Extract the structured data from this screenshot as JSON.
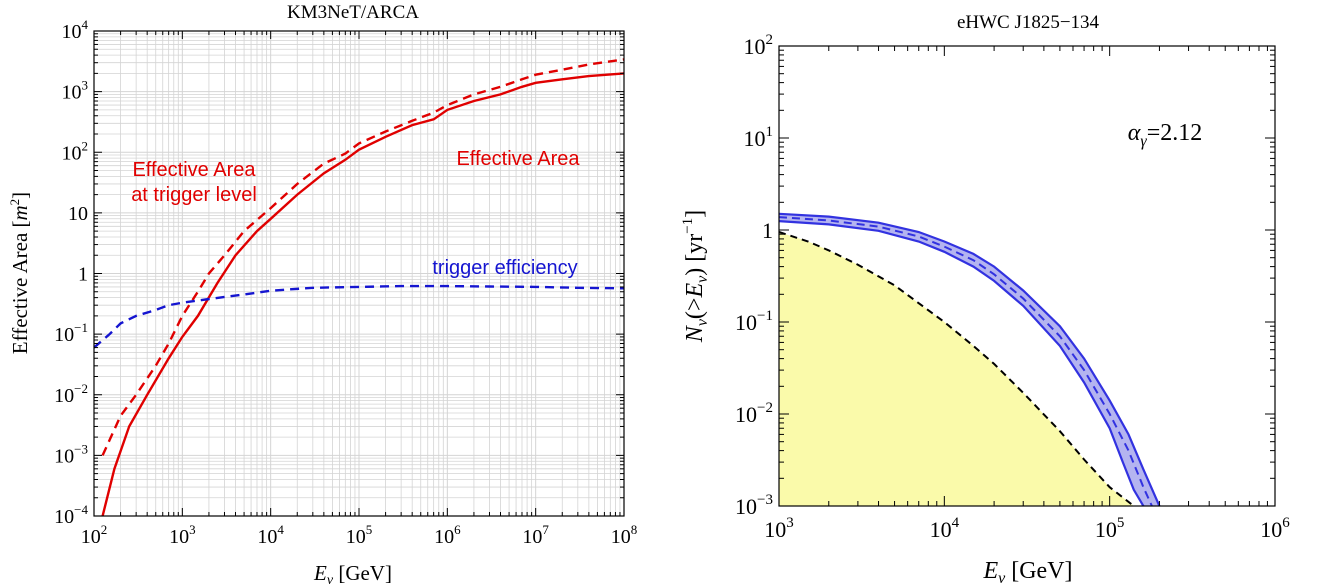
{
  "chart_data": [
    {
      "type": "line",
      "title": "KM3NeT/ARCA",
      "xlabel": "E_ν [GeV]",
      "ylabel": "Effective Area [m²]",
      "xscale": "log",
      "yscale": "log",
      "xlim": [
        100,
        100000000
      ],
      "ylim": [
        0.0001,
        10000
      ],
      "grid": true,
      "x_ticks": [
        {
          "base": "10",
          "exp": "2"
        },
        {
          "base": "10",
          "exp": "3"
        },
        {
          "base": "10",
          "exp": "4"
        },
        {
          "base": "10",
          "exp": "5"
        },
        {
          "base": "10",
          "exp": "6"
        },
        {
          "base": "10",
          "exp": "7"
        },
        {
          "base": "10",
          "exp": "8"
        }
      ],
      "y_ticks": [
        {
          "base": "10",
          "exp": "−4"
        },
        {
          "base": "10",
          "exp": "−3"
        },
        {
          "base": "10",
          "exp": "−2"
        },
        {
          "base": "10",
          "exp": "−1"
        },
        {
          "base": "1",
          "exp": ""
        },
        {
          "base": "10",
          "exp": ""
        },
        {
          "base": "10",
          "exp": "2"
        },
        {
          "base": "10",
          "exp": "3"
        },
        {
          "base": "10",
          "exp": "4"
        }
      ],
      "series": [
        {
          "label": "Effective Area",
          "color": "#e00000",
          "style": "solid",
          "points": [
            [
              125,
              0.0001
            ],
            [
              170,
              0.0006
            ],
            [
              250,
              0.003
            ],
            [
              400,
              0.01
            ],
            [
              700,
              0.04
            ],
            [
              1000,
              0.09
            ],
            [
              1500,
              0.2
            ],
            [
              2500,
              0.7
            ],
            [
              4000,
              2
            ],
            [
              7000,
              5
            ],
            [
              10000,
              8
            ],
            [
              20000,
              20
            ],
            [
              40000,
              45
            ],
            [
              70000,
              75
            ],
            [
              100000,
              110
            ],
            [
              200000,
              180
            ],
            [
              400000,
              280
            ],
            [
              700000,
              350
            ],
            [
              1000000,
              500
            ],
            [
              2000000,
              700
            ],
            [
              4000000,
              900
            ],
            [
              7000000,
              1200
            ],
            [
              10000000,
              1400
            ],
            [
              20000000,
              1600
            ],
            [
              40000000,
              1800
            ],
            [
              100000000,
              2000
            ]
          ]
        },
        {
          "label": "Effective Area at trigger level",
          "color": "#e00000",
          "style": "dashed",
          "points": [
            [
              125,
              0.001
            ],
            [
              200,
              0.0045
            ],
            [
              300,
              0.01
            ],
            [
              500,
              0.03
            ],
            [
              700,
              0.07
            ],
            [
              1000,
              0.2
            ],
            [
              1500,
              0.5
            ],
            [
              2000,
              1
            ],
            [
              3000,
              2
            ],
            [
              5000,
              5
            ],
            [
              10000,
              12
            ],
            [
              20000,
              30
            ],
            [
              40000,
              65
            ],
            [
              70000,
              95
            ],
            [
              100000,
              140
            ],
            [
              200000,
              220
            ],
            [
              400000,
              330
            ],
            [
              700000,
              450
            ],
            [
              1000000,
              600
            ],
            [
              2000000,
              900
            ],
            [
              4000000,
              1200
            ],
            [
              7000000,
              1600
            ],
            [
              10000000,
              1900
            ],
            [
              20000000,
              2300
            ],
            [
              40000000,
              2800
            ],
            [
              100000000,
              3400
            ]
          ]
        },
        {
          "label": "trigger efficiency",
          "color": "#1515d0",
          "style": "dashed",
          "points": [
            [
              100,
              0.06
            ],
            [
              150,
              0.1
            ],
            [
              200,
              0.15
            ],
            [
              300,
              0.2
            ],
            [
              500,
              0.25
            ],
            [
              700,
              0.3
            ],
            [
              1000,
              0.33
            ],
            [
              2000,
              0.38
            ],
            [
              5000,
              0.45
            ],
            [
              10000,
              0.52
            ],
            [
              30000,
              0.58
            ],
            [
              100000,
              0.6
            ],
            [
              300000,
              0.62
            ],
            [
              1000000,
              0.62
            ],
            [
              3000000,
              0.61
            ],
            [
              10000000,
              0.6
            ],
            [
              30000000,
              0.58
            ],
            [
              100000000,
              0.57
            ]
          ]
        }
      ],
      "annotations": {
        "eff_area": "Effective Area",
        "eff_trig_1": "Effective Area",
        "eff_trig_2": "at trigger level",
        "trig_eff": "trigger efficiency"
      }
    },
    {
      "type": "area",
      "title": "eHWC J1825−134",
      "xlabel": "E_ν [GeV]",
      "ylabel": "N_ν(>E_ν) [yr⁻¹]",
      "xscale": "log",
      "yscale": "log",
      "xlim": [
        1000,
        1000000
      ],
      "ylim": [
        0.001,
        100
      ],
      "grid": false,
      "x_ticks": [
        {
          "base": "10",
          "exp": "3"
        },
        {
          "base": "10",
          "exp": "4"
        },
        {
          "base": "10",
          "exp": "5"
        },
        {
          "base": "10",
          "exp": "6"
        }
      ],
      "y_ticks": [
        {
          "base": "10",
          "exp": "−3"
        },
        {
          "base": "10",
          "exp": "−2"
        },
        {
          "base": "10",
          "exp": "−1"
        },
        {
          "base": "1",
          "exp": ""
        },
        {
          "base": "10",
          "exp": "1"
        },
        {
          "base": "10",
          "exp": "2"
        }
      ],
      "annotation": {
        "prefix": "α",
        "sub": "γ",
        "value": "=2.12"
      },
      "band_upper": [
        [
          1000,
          1.5
        ],
        [
          2000,
          1.4
        ],
        [
          4000,
          1.2
        ],
        [
          7000,
          0.95
        ],
        [
          10000,
          0.75
        ],
        [
          15000,
          0.55
        ],
        [
          20000,
          0.4
        ],
        [
          30000,
          0.22
        ],
        [
          50000,
          0.09
        ],
        [
          70000,
          0.04
        ],
        [
          100000,
          0.014
        ],
        [
          130000,
          0.006
        ],
        [
          160000,
          0.0025
        ],
        [
          200000,
          0.001
        ]
      ],
      "band_lower": [
        [
          1000,
          1.25
        ],
        [
          2000,
          1.15
        ],
        [
          4000,
          0.98
        ],
        [
          7000,
          0.75
        ],
        [
          10000,
          0.58
        ],
        [
          15000,
          0.4
        ],
        [
          20000,
          0.28
        ],
        [
          30000,
          0.15
        ],
        [
          50000,
          0.055
        ],
        [
          70000,
          0.022
        ],
        [
          100000,
          0.007
        ],
        [
          120000,
          0.003
        ],
        [
          140000,
          0.0015
        ],
        [
          160000,
          0.001
        ]
      ],
      "band_center": [
        [
          1000,
          1.38
        ],
        [
          2000,
          1.27
        ],
        [
          4000,
          1.09
        ],
        [
          7000,
          0.85
        ],
        [
          10000,
          0.66
        ],
        [
          15000,
          0.47
        ],
        [
          20000,
          0.33
        ],
        [
          30000,
          0.18
        ],
        [
          50000,
          0.07
        ],
        [
          70000,
          0.03
        ],
        [
          100000,
          0.01
        ],
        [
          130000,
          0.004
        ],
        [
          160000,
          0.0016
        ],
        [
          180000,
          0.001
        ]
      ],
      "band_color": "#3232e0",
      "band_fill": "#b4b4f0",
      "background_curve": [
        [
          1000,
          0.95
        ],
        [
          1500,
          0.75
        ],
        [
          2000,
          0.6
        ],
        [
          3000,
          0.42
        ],
        [
          5000,
          0.25
        ],
        [
          7000,
          0.16
        ],
        [
          10000,
          0.1
        ],
        [
          15000,
          0.055
        ],
        [
          20000,
          0.035
        ],
        [
          30000,
          0.017
        ],
        [
          50000,
          0.0065
        ],
        [
          70000,
          0.0032
        ],
        [
          100000,
          0.0016
        ],
        [
          140000,
          0.001
        ]
      ],
      "background_fill": "#fafaaa"
    }
  ]
}
